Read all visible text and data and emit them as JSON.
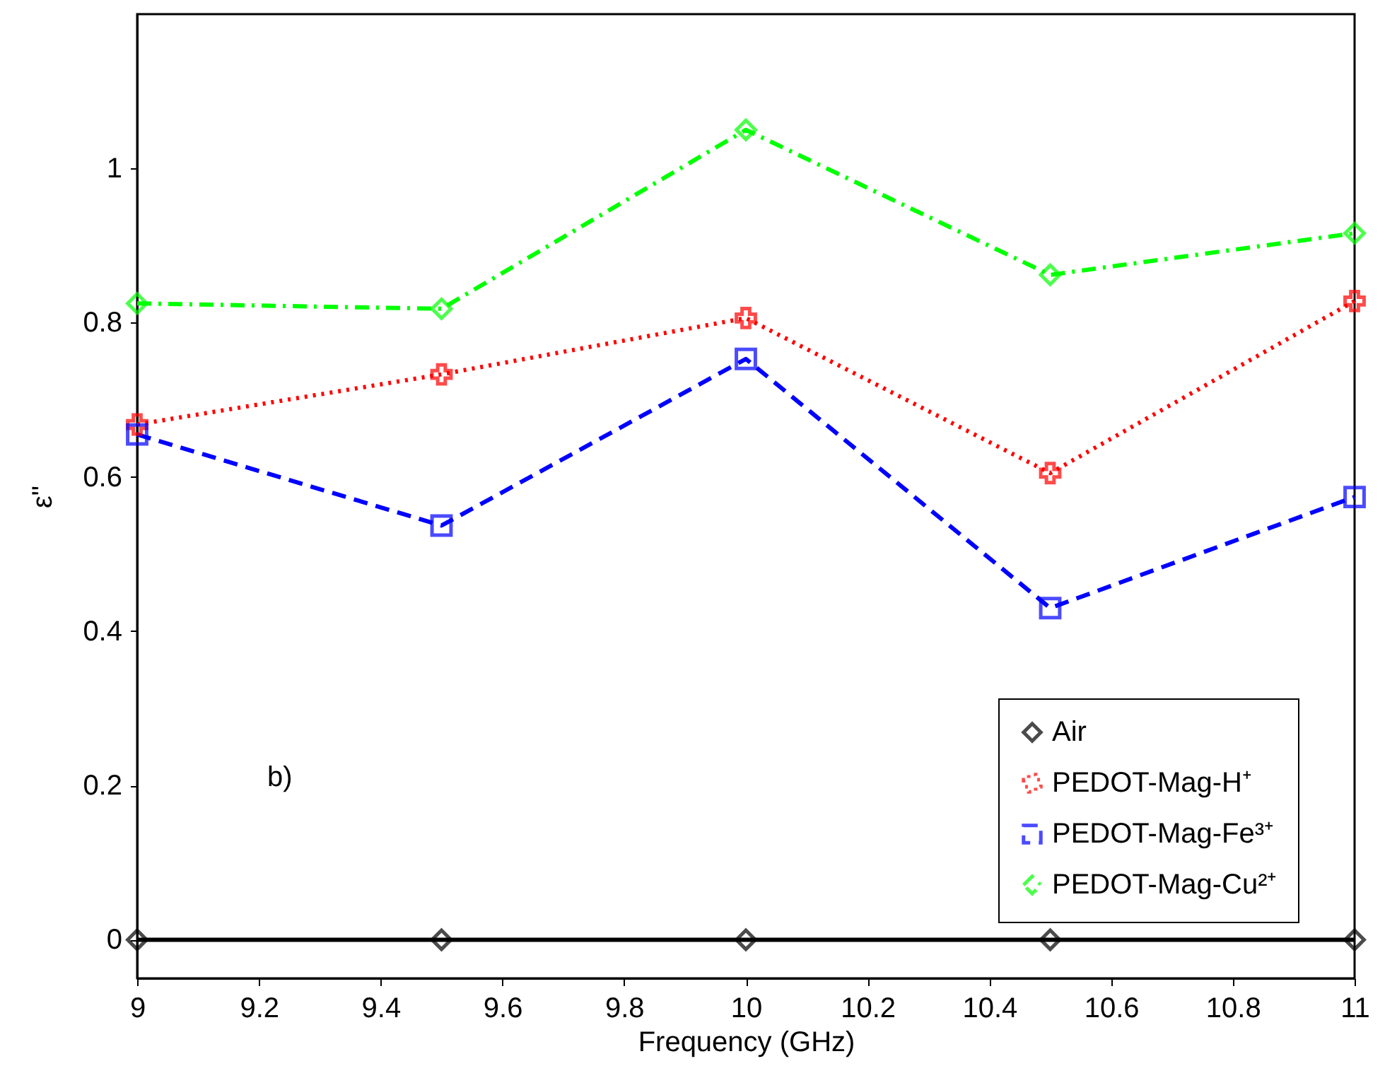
{
  "chart_data": {
    "type": "line",
    "xlabel": "Frequency (GHz)",
    "ylabel": "ε\"",
    "x": [
      9,
      9.5,
      10,
      10.5,
      11
    ],
    "series": [
      {
        "name": "Air",
        "color": "#000000",
        "marker": "diamond",
        "line_style": "solid",
        "values": [
          0,
          0,
          0,
          0,
          0
        ]
      },
      {
        "name": "PEDOT-Mag-H⁺",
        "color": "#ff0000",
        "marker": "cross",
        "line_style": "dotted",
        "values": [
          0.668,
          0.733,
          0.806,
          0.605,
          0.828
        ]
      },
      {
        "name": "PEDOT-Mag-Fe³⁺",
        "color": "#0000ff",
        "marker": "square",
        "line_style": "dashed",
        "values": [
          0.655,
          0.537,
          0.753,
          0.43,
          0.574
        ]
      },
      {
        "name": "PEDOT-Mag-Cu²⁺",
        "color": "#00ff00",
        "marker": "diamond",
        "line_style": "dashdot",
        "values": [
          0.825,
          0.818,
          1.05,
          0.862,
          0.916
        ]
      }
    ],
    "xlim": [
      9,
      11
    ],
    "xticks": [
      9,
      9.2,
      9.4,
      9.6,
      9.8,
      10,
      10.2,
      10.4,
      10.6,
      10.8,
      11
    ],
    "ylim": [
      -0.05,
      1.2
    ],
    "yticks": [
      0,
      0.2,
      0.4,
      0.6,
      0.8,
      1
    ],
    "grid": false,
    "legend": "bottom right",
    "annotations": [
      "b)"
    ]
  }
}
